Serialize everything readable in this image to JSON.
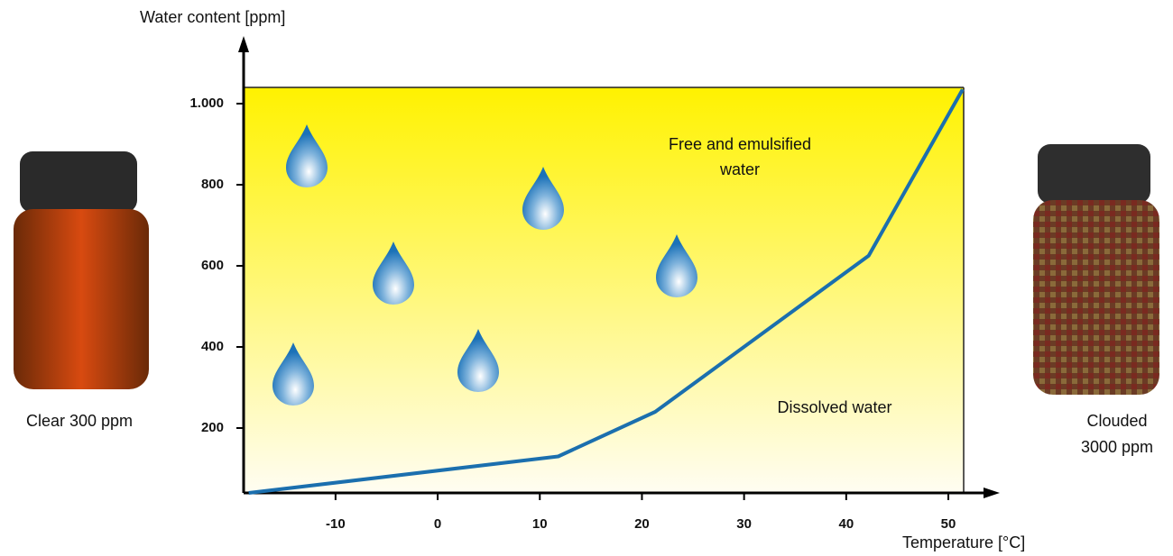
{
  "chart_data": {
    "type": "line",
    "y_label": "Water content [ppm]",
    "x_label": "Temperature [°C]",
    "region_label_upper": [
      "Free and emulsified",
      "water"
    ],
    "region_label_lower": "Dissolved water",
    "sample_left": [
      "Clear 300 ppm"
    ],
    "sample_right": [
      "Clouded",
      "3000 ppm"
    ],
    "x": [
      -18.5,
      11.8,
      21.3,
      42.2,
      51.4
    ],
    "values": [
      40,
      130,
      240,
      625,
      1035
    ],
    "color": "#1b6fae",
    "xlim": [
      -19,
      51.5
    ],
    "ylim": [
      40,
      1040
    ],
    "xticks": [
      -10,
      0,
      10,
      20,
      30,
      40,
      50
    ],
    "yticks": [
      200,
      400,
      600,
      800,
      {
        "value": 1000,
        "label": "1.000"
      }
    ]
  }
}
